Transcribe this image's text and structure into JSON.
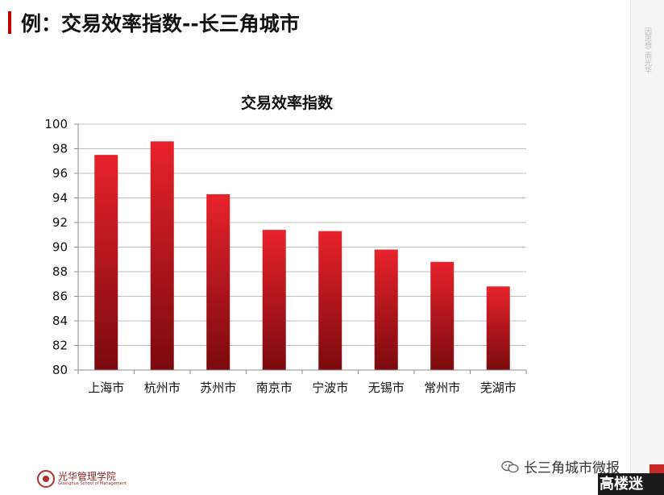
{
  "slide": {
    "title": "例：交易效率指数--长三角城市",
    "side_text": "因思想 而光华"
  },
  "footer": {
    "logo_text": "光华管理学院",
    "logo_subtext": "Guanghua School of Management",
    "watermark_text": "长三角城市微报",
    "badge_text": "高楼迷"
  },
  "chart_data": {
    "type": "bar",
    "title": "交易效率指数",
    "categories": [
      "上海市",
      "杭州市",
      "苏州市",
      "南京市",
      "宁波市",
      "无锡市",
      "常州市",
      "芜湖市"
    ],
    "values": [
      97.5,
      98.6,
      94.3,
      91.4,
      91.3,
      89.8,
      88.8,
      86.8
    ],
    "xlabel": "",
    "ylabel": "",
    "ylim": [
      80,
      100
    ],
    "yticks": [
      80,
      82,
      84,
      86,
      88,
      90,
      92,
      94,
      96,
      98,
      100
    ],
    "grid": true,
    "legend": "none",
    "bar_color_top": "#e8222a",
    "bar_color_bottom": "#7a0a0e"
  }
}
